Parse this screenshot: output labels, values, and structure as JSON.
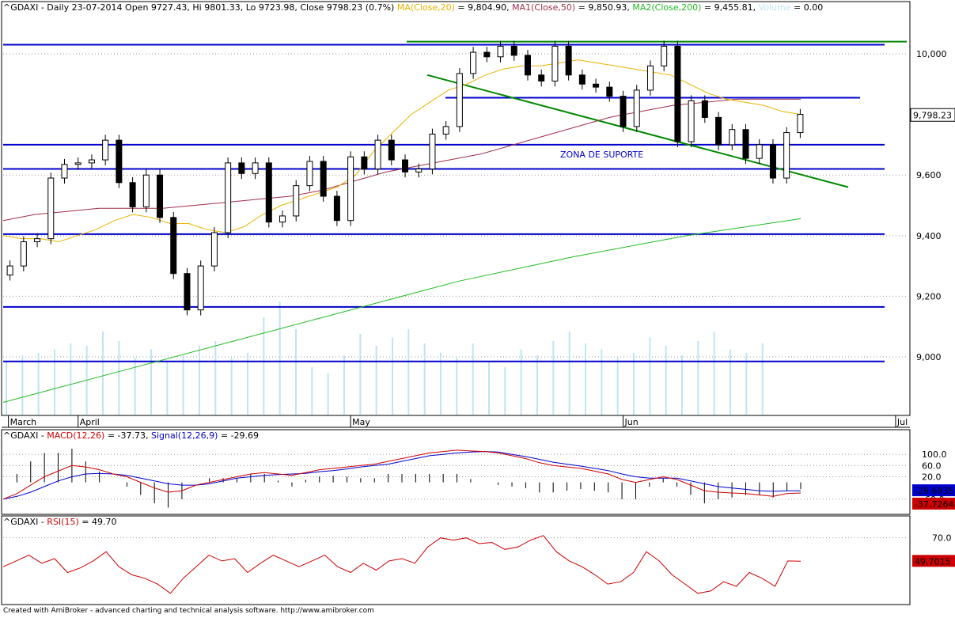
{
  "chart_data": [
    {
      "type": "candlestick",
      "header": {
        "symbol": "^GDAXI",
        "info": " - Daily 23-07-2014 Open 9727.43, Hi 9801.33, Lo 9723.98, Close 9798.23 (0.7%) ",
        "ma20_label": "MA(Close,20)",
        "ma20_value": " = 9,804.90, ",
        "ma50_label": "MA1(Close,50)",
        "ma50_value": " = 9,850.93, ",
        "ma200_label": "MA2(Close,200)",
        "ma200_value": " = 9,455.81, ",
        "volume_label": "Volume",
        "volume_value": " = 0.00"
      },
      "colors": {
        "ma20": "#e8b400",
        "ma50": "#a0304a",
        "ma200": "#22bb22",
        "volume": "#bfe4f2",
        "hlines": "#0000cc",
        "trend": "#008800"
      },
      "ylim": [
        8820,
        10120
      ],
      "y_ticks": [
        "9,000",
        "9,200",
        "9,400",
        "9,600",
        "10,000"
      ],
      "y_tick_values": [
        9000,
        9200,
        9400,
        9600,
        10000
      ],
      "last_price_label": "9,798.23",
      "last_price": 9798.23,
      "x_labels": [
        "March",
        "April",
        "May",
        "Jun",
        "Jul"
      ],
      "x_label_bar_index": [
        0,
        5,
        25,
        45,
        65
      ],
      "annotation": "ZONA DE SUPORTE",
      "support_levels": [
        10030,
        9700,
        9620,
        9405,
        9165,
        8985
      ],
      "resistance_box": 9855,
      "candles_close": [
        9300,
        9380,
        9390,
        9590,
        9635,
        9640,
        9650,
        9715,
        9575,
        9495,
        9600,
        9460,
        9275,
        9155,
        9300,
        9410,
        9640,
        9605,
        9640,
        9445,
        9465,
        9565,
        9645,
        9530,
        9450,
        9660,
        9620,
        9715,
        9650,
        9610,
        9620,
        9735,
        9760,
        9935,
        10005,
        9990,
        10025,
        9995,
        9930,
        9910,
        10025,
        9930,
        9900,
        9890,
        9860,
        9760,
        9880,
        9960,
        10025,
        9710,
        9845,
        9790,
        9700,
        9750,
        9655,
        9700,
        9590,
        9740,
        9800
      ],
      "moving_averages": {
        "ma20": [
          9400,
          9390,
          9390,
          9380,
          9400,
          9420,
          9450,
          9470,
          9460,
          9440,
          9440,
          9420,
          9410,
          9430,
          9470,
          9500,
          9520,
          9540,
          9560,
          9600,
          9680,
          9740,
          9800,
          9840,
          9880,
          9900,
          9930,
          9950,
          9960,
          9960,
          9970,
          9980,
          9970,
          9960,
          9950,
          9940,
          9930,
          9900,
          9870,
          9850,
          9840,
          9830,
          9810,
          9800
        ],
        "ma50": [
          9450,
          9470,
          9480,
          9490,
          9490,
          9490,
          9500,
          9510,
          9520,
          9530,
          9550,
          9580,
          9610,
          9630,
          9650,
          9670,
          9700,
          9730,
          9760,
          9790,
          9810,
          9830,
          9840,
          9850,
          9850,
          9850
        ],
        "ma200": [
          8850,
          8950,
          9050,
          9150,
          9250,
          9330,
          9400,
          9456
        ]
      },
      "volume": [
        0.45,
        0.5,
        0.52,
        0.55,
        0.6,
        0.58,
        0.7,
        0.62,
        0.48,
        0.55,
        0.44,
        0.5,
        0.58,
        0.62,
        0.48,
        0.52,
        0.82,
        0.95,
        0.72,
        0.4,
        0.35,
        0.5,
        0.68,
        0.58,
        0.65,
        0.72,
        0.6,
        0.52,
        0.48,
        0.6,
        0.45,
        0.4,
        0.55,
        0.5,
        0.62,
        0.7,
        0.6,
        0.55,
        0.48,
        0.52,
        0.65,
        0.58,
        0.5,
        0.62,
        0.7,
        0.55,
        0.52,
        0.6
      ],
      "trendline_label": ""
    },
    {
      "type": "line",
      "title_symbol": "^GDAXI",
      "title_macd": "MACD(12,26)",
      "title_macd_value": " = -37.73, ",
      "title_signal": "Signal(12,26,9)",
      "title_signal_value": " = -29.69",
      "ylim": [
        -100,
        140
      ],
      "y_ticks": [
        "100.0",
        "60.0",
        "20.0",
        "-60.0"
      ],
      "y_tick_values": [
        100,
        60,
        20,
        -60
      ],
      "macd_label": "-37.7264",
      "signal_label": "-29.6935",
      "macd": [
        -60,
        -40,
        -10,
        20,
        40,
        60,
        55,
        45,
        30,
        20,
        0,
        -20,
        -35,
        -30,
        -10,
        0,
        10,
        20,
        30,
        35,
        30,
        25,
        35,
        45,
        50,
        55,
        60,
        65,
        75,
        85,
        95,
        105,
        110,
        115,
        112,
        110,
        105,
        95,
        85,
        70,
        60,
        55,
        50,
        40,
        30,
        10,
        0,
        10,
        20,
        10,
        -10,
        -30,
        -35,
        -38,
        -40,
        -45,
        -50,
        -40,
        -38
      ],
      "signal": [
        -60,
        -50,
        -35,
        -15,
        5,
        20,
        30,
        32,
        30,
        25,
        15,
        5,
        -5,
        -10,
        -10,
        -5,
        5,
        15,
        20,
        25,
        28,
        30,
        32,
        38,
        42,
        48,
        55,
        60,
        65,
        75,
        85,
        95,
        100,
        105,
        108,
        110,
        108,
        100,
        92,
        82,
        72,
        65,
        58,
        50,
        42,
        30,
        20,
        15,
        15,
        15,
        5,
        -5,
        -15,
        -20,
        -25,
        -30,
        -32,
        -30,
        -30
      ]
    },
    {
      "type": "line",
      "title_symbol": "^GDAXI",
      "title_rsi": "RSI(15)",
      "title_rsi_value": " = 49.70",
      "ylim": [
        15,
        78
      ],
      "y_ticks": [
        "70.0"
      ],
      "y_tick_values": [
        70
      ],
      "rsi_label": "49.7015",
      "rsi": [
        45,
        50,
        55,
        48,
        52,
        40,
        44,
        50,
        58,
        45,
        38,
        35,
        30,
        22,
        35,
        45,
        55,
        50,
        52,
        40,
        48,
        55,
        50,
        45,
        50,
        55,
        45,
        40,
        48,
        42,
        50,
        52,
        48,
        62,
        70,
        68,
        70,
        65,
        66,
        60,
        62,
        68,
        72,
        58,
        50,
        45,
        38,
        30,
        32,
        40,
        58,
        50,
        38,
        30,
        22,
        24,
        32,
        28,
        40,
        35,
        28,
        50,
        49.7
      ]
    }
  ],
  "footer": "Created with AmiBroker - advanced charting and technical analysis software. http://www.amibroker.com"
}
